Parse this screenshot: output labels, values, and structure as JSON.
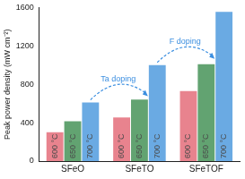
{
  "chart_data": {
    "type": "bar",
    "y_label": "Peak power density (mW cm⁻²)",
    "categories": [
      "SFeO",
      "SFeTO",
      "SFeTOF"
    ],
    "series": [
      {
        "name": "600 °C",
        "color": "#e8838e",
        "values": [
          300,
          455,
          730
        ]
      },
      {
        "name": "650 °C",
        "color": "#62a371",
        "values": [
          415,
          640,
          1010
        ]
      },
      {
        "name": "700 °C",
        "color": "#6aaae3",
        "values": [
          610,
          1000,
          1555
        ]
      }
    ],
    "ylim": [
      0,
      1600
    ],
    "yticks": [
      0,
      400,
      800,
      1200,
      1600
    ],
    "grid": false,
    "data_labels": false,
    "annotations": [
      "Ta doping",
      "F doping"
    ]
  }
}
